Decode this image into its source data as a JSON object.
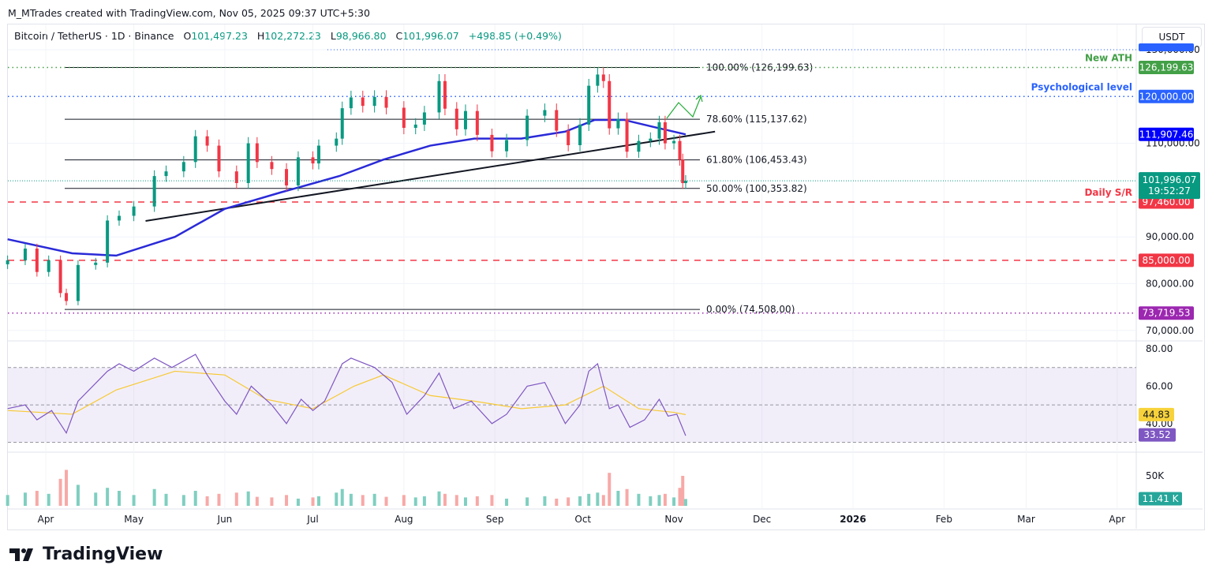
{
  "header": {
    "credit": "M_MTrades created with TradingView.com, Nov 05, 2025 09:37 UTC+5:30",
    "symbol": "Bitcoin / TetherUS · 1D · Binance",
    "open_label": "O",
    "open": "101,497.23",
    "high_label": "H",
    "high": "102,272.23",
    "low_label": "L",
    "low": "98,966.80",
    "close_label": "C",
    "close": "101,996.07",
    "change": "+498.85 (+0.49%)",
    "currency": "USDT"
  },
  "brand": "TradingView",
  "colors": {
    "up": "#089981",
    "down": "#f23645",
    "ma": "#2a2ad8",
    "rsi": "#7e57c2",
    "rsi_ma": "#f7c933",
    "vol_up": "#7fcfc0",
    "vol_down": "#f7a9a7"
  },
  "chart_data": [
    {
      "type": "candlestick",
      "title": "Bitcoin / TetherUS · 1D · Binance",
      "ylim": [
        70000,
        130000
      ],
      "y_ticks": [
        "130,000.00",
        "110,000.00",
        "90,000.00",
        "80,000.00",
        "70,000.00"
      ],
      "x_ticks": [
        {
          "label": "Apr",
          "date": "2025-04-01"
        },
        {
          "label": "May",
          "date": "2025-05-01"
        },
        {
          "label": "Jun",
          "date": "2025-06-01"
        },
        {
          "label": "Jul",
          "date": "2025-07-01"
        },
        {
          "label": "Aug",
          "date": "2025-08-01"
        },
        {
          "label": "Sep",
          "date": "2025-09-01"
        },
        {
          "label": "Oct",
          "date": "2025-10-01"
        },
        {
          "label": "Nov",
          "date": "2025-11-01"
        },
        {
          "label": "Dec",
          "date": "2025-12-01"
        },
        {
          "label": "2026",
          "date": "2026-01-01"
        },
        {
          "label": "Feb",
          "date": "2026-02-01"
        },
        {
          "label": "Mar",
          "date": "2026-03-01"
        },
        {
          "label": "Apr",
          "date": "2026-04-01"
        }
      ],
      "closes": [
        [
          "2025-03-19",
          85000
        ],
        [
          "2025-03-25",
          87500
        ],
        [
          "2025-03-29",
          82500
        ],
        [
          "2025-04-02",
          85000
        ],
        [
          "2025-04-06",
          78000
        ],
        [
          "2025-04-08",
          76300
        ],
        [
          "2025-04-12",
          84000
        ],
        [
          "2025-04-18",
          84500
        ],
        [
          "2025-04-22",
          93500
        ],
        [
          "2025-04-26",
          94500
        ],
        [
          "2025-05-01",
          96500
        ],
        [
          "2025-05-08",
          103000
        ],
        [
          "2025-05-12",
          104000
        ],
        [
          "2025-05-18",
          106000
        ],
        [
          "2025-05-22",
          111500
        ],
        [
          "2025-05-26",
          109500
        ],
        [
          "2025-05-30",
          104000
        ],
        [
          "2025-06-05",
          101500
        ],
        [
          "2025-06-09",
          110000
        ],
        [
          "2025-06-12",
          106000
        ],
        [
          "2025-06-17",
          104500
        ],
        [
          "2025-06-22",
          101000
        ],
        [
          "2025-06-26",
          107000
        ],
        [
          "2025-07-01",
          105700
        ],
        [
          "2025-07-03",
          109500
        ],
        [
          "2025-07-09",
          111000
        ],
        [
          "2025-07-11",
          117500
        ],
        [
          "2025-07-14",
          119800
        ],
        [
          "2025-07-18",
          118000
        ],
        [
          "2025-07-22",
          119900
        ],
        [
          "2025-07-26",
          117600
        ],
        [
          "2025-08-01",
          113300
        ],
        [
          "2025-08-05",
          114000
        ],
        [
          "2025-08-08",
          116600
        ],
        [
          "2025-08-13",
          123300
        ],
        [
          "2025-08-15",
          117400
        ],
        [
          "2025-08-19",
          113000
        ],
        [
          "2025-08-22",
          116900
        ],
        [
          "2025-08-26",
          111800
        ],
        [
          "2025-08-31",
          108300
        ],
        [
          "2025-09-05",
          110700
        ],
        [
          "2025-09-12",
          115900
        ],
        [
          "2025-09-18",
          117100
        ],
        [
          "2025-09-22",
          112700
        ],
        [
          "2025-09-26",
          109600
        ],
        [
          "2025-09-30",
          114000
        ],
        [
          "2025-10-03",
          122300
        ],
        [
          "2025-10-06",
          124700
        ],
        [
          "2025-10-08",
          123300
        ],
        [
          "2025-10-10",
          113200
        ],
        [
          "2025-10-13",
          115200
        ],
        [
          "2025-10-16",
          108200
        ],
        [
          "2025-10-20",
          110500
        ],
        [
          "2025-10-24",
          111000
        ],
        [
          "2025-10-27",
          114500
        ],
        [
          "2025-10-29",
          110000
        ],
        [
          "2025-11-01",
          110500
        ],
        [
          "2025-11-03",
          106500
        ],
        [
          "2025-11-04",
          101500
        ],
        [
          "2025-11-05",
          101996.07
        ]
      ],
      "ma": [
        [
          "2025-03-19",
          89500
        ],
        [
          "2025-04-10",
          86500
        ],
        [
          "2025-04-25",
          86000
        ],
        [
          "2025-05-15",
          90000
        ],
        [
          "2025-06-01",
          96000
        ],
        [
          "2025-06-20",
          99500
        ],
        [
          "2025-07-10",
          103000
        ],
        [
          "2025-07-25",
          106500
        ],
        [
          "2025-08-10",
          109500
        ],
        [
          "2025-08-25",
          111000
        ],
        [
          "2025-09-10",
          111000
        ],
        [
          "2025-09-25",
          112500
        ],
        [
          "2025-10-05",
          115000
        ],
        [
          "2025-10-15",
          115000
        ],
        [
          "2025-10-25",
          113500
        ],
        [
          "2025-11-05",
          111907.46
        ]
      ],
      "trendline": [
        [
          "2025-05-05",
          93400
        ],
        [
          "2025-11-15",
          112500
        ]
      ],
      "fib_levels": [
        {
          "label": "100.00% (126,199.63)",
          "value": 126199.63
        },
        {
          "label": "78.60% (115,137.62)",
          "value": 115137.62
        },
        {
          "label": "61.80% (106,453.43)",
          "value": 106453.43
        },
        {
          "label": "50.00% (100,353.82)",
          "value": 100353.82
        },
        {
          "label": "0.00% (74,508.00)",
          "value": 74508
        }
      ],
      "levels": [
        {
          "name": "New ATH",
          "value": 126199.63,
          "price_label": "126,199.63",
          "color": "#43a047",
          "style": "dotted"
        },
        {
          "name": "Psychological level",
          "value": 120000,
          "price_label": "120,000.00",
          "color": "#2962ff",
          "style": "dotted"
        },
        {
          "name": "Daily S/R",
          "value": 97460,
          "price_label": "97,460.00",
          "color": "#f23645",
          "style": "dashed"
        },
        {
          "name": "",
          "value": 85000,
          "price_label": "85,000.00",
          "color": "#f23645",
          "style": "dashed"
        },
        {
          "name": "",
          "value": 73719.53,
          "price_label": "73,719.53",
          "color": "#9c27b0",
          "style": "dotted"
        }
      ],
      "ma_label": "111,907.46",
      "last_price_label": "101,996.07",
      "countdown": "19:52:27"
    },
    {
      "type": "line",
      "title": "RSI",
      "ylim": [
        25,
        85
      ],
      "y_ticks": [
        "80.00",
        "60.00",
        "40.00"
      ],
      "band": [
        30,
        70
      ],
      "rsi_label": "33.52",
      "rsi_ma_label": "44.83",
      "rsi": [
        [
          "2025-03-19",
          48
        ],
        [
          "2025-03-25",
          50
        ],
        [
          "2025-03-29",
          42
        ],
        [
          "2025-04-03",
          47
        ],
        [
          "2025-04-08",
          35
        ],
        [
          "2025-04-12",
          52
        ],
        [
          "2025-04-22",
          68
        ],
        [
          "2025-04-26",
          72
        ],
        [
          "2025-05-01",
          68
        ],
        [
          "2025-05-08",
          75
        ],
        [
          "2025-05-14",
          70
        ],
        [
          "2025-05-22",
          77
        ],
        [
          "2025-05-26",
          66
        ],
        [
          "2025-06-01",
          52
        ],
        [
          "2025-06-05",
          45
        ],
        [
          "2025-06-10",
          60
        ],
        [
          "2025-06-17",
          50
        ],
        [
          "2025-06-22",
          40
        ],
        [
          "2025-06-27",
          53
        ],
        [
          "2025-07-01",
          47
        ],
        [
          "2025-07-05",
          52
        ],
        [
          "2025-07-11",
          72
        ],
        [
          "2025-07-14",
          75
        ],
        [
          "2025-07-22",
          70
        ],
        [
          "2025-07-28",
          62
        ],
        [
          "2025-08-02",
          45
        ],
        [
          "2025-08-08",
          55
        ],
        [
          "2025-08-13",
          67
        ],
        [
          "2025-08-18",
          48
        ],
        [
          "2025-08-24",
          52
        ],
        [
          "2025-08-31",
          40
        ],
        [
          "2025-09-05",
          45
        ],
        [
          "2025-09-12",
          60
        ],
        [
          "2025-09-18",
          62
        ],
        [
          "2025-09-25",
          40
        ],
        [
          "2025-09-30",
          50
        ],
        [
          "2025-10-03",
          68
        ],
        [
          "2025-10-06",
          72
        ],
        [
          "2025-10-10",
          48
        ],
        [
          "2025-10-13",
          50
        ],
        [
          "2025-10-17",
          38
        ],
        [
          "2025-10-22",
          42
        ],
        [
          "2025-10-27",
          53
        ],
        [
          "2025-10-30",
          44
        ],
        [
          "2025-11-02",
          45
        ],
        [
          "2025-11-05",
          33.52
        ]
      ],
      "rsi_ma": [
        [
          "2025-03-19",
          47
        ],
        [
          "2025-04-10",
          45
        ],
        [
          "2025-04-25",
          58
        ],
        [
          "2025-05-15",
          68
        ],
        [
          "2025-06-01",
          66
        ],
        [
          "2025-06-15",
          53
        ],
        [
          "2025-07-01",
          48
        ],
        [
          "2025-07-15",
          60
        ],
        [
          "2025-07-25",
          66
        ],
        [
          "2025-08-10",
          55
        ],
        [
          "2025-08-25",
          52
        ],
        [
          "2025-09-10",
          48
        ],
        [
          "2025-09-25",
          50
        ],
        [
          "2025-10-08",
          60
        ],
        [
          "2025-10-20",
          48
        ],
        [
          "2025-11-01",
          46
        ],
        [
          "2025-11-05",
          44.83
        ]
      ]
    },
    {
      "type": "bar",
      "title": "Volume",
      "y_ticks": [
        "50K"
      ],
      "last_label": "11.41 K",
      "volume_k": [
        18,
        22,
        25,
        20,
        45,
        60,
        35,
        22,
        30,
        25,
        18,
        28,
        20,
        18,
        25,
        16,
        20,
        22,
        24,
        15,
        14,
        18,
        12,
        14,
        16,
        22,
        28,
        20,
        18,
        20,
        15,
        18,
        14,
        16,
        24,
        20,
        18,
        14,
        16,
        18,
        12,
        14,
        16,
        12,
        14,
        16,
        20,
        22,
        18,
        55,
        25,
        28,
        20,
        16,
        18,
        20,
        14,
        30,
        50,
        11.41
      ]
    }
  ]
}
